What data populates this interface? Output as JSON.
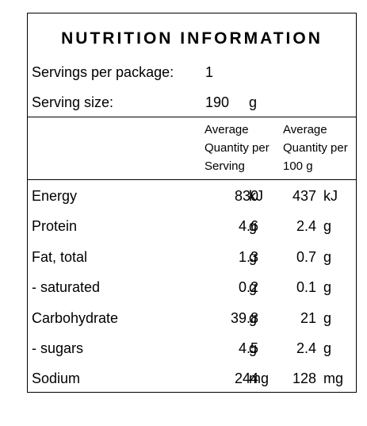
{
  "title": "NUTRITION INFORMATION",
  "servings": {
    "label": "Servings per package:",
    "value": "1"
  },
  "serving_size": {
    "label": "Serving size:",
    "value": "190",
    "unit": "g"
  },
  "columns": {
    "per_serving": [
      "Average",
      "Quantity per",
      "Serving"
    ],
    "per_100g": [
      "Average",
      "Quantity per",
      "100 g"
    ]
  },
  "rows": [
    {
      "name": "Energy",
      "serving": "830",
      "serving_unit": "kJ",
      "per100": "437",
      "per100_unit": "kJ"
    },
    {
      "name": "Protein",
      "serving": "4.6",
      "serving_unit": "g",
      "per100": "2.4",
      "per100_unit": "g"
    },
    {
      "name": "Fat, total",
      "serving": "1.3",
      "serving_unit": "g",
      "per100": "0.7",
      "per100_unit": "g"
    },
    {
      "name": "- saturated",
      "serving": "0.2",
      "serving_unit": "g",
      "per100": "0.1",
      "per100_unit": "g"
    },
    {
      "name": "Carbohydrate",
      "serving": "39.8",
      "serving_unit": "g",
      "per100": "21",
      "per100_unit": "g"
    },
    {
      "name": "- sugars",
      "serving": "4.5",
      "serving_unit": "g",
      "per100": "2.4",
      "per100_unit": "g"
    },
    {
      "name": "Sodium",
      "serving": "244",
      "serving_unit": "mg",
      "per100": "128",
      "per100_unit": "mg"
    }
  ]
}
